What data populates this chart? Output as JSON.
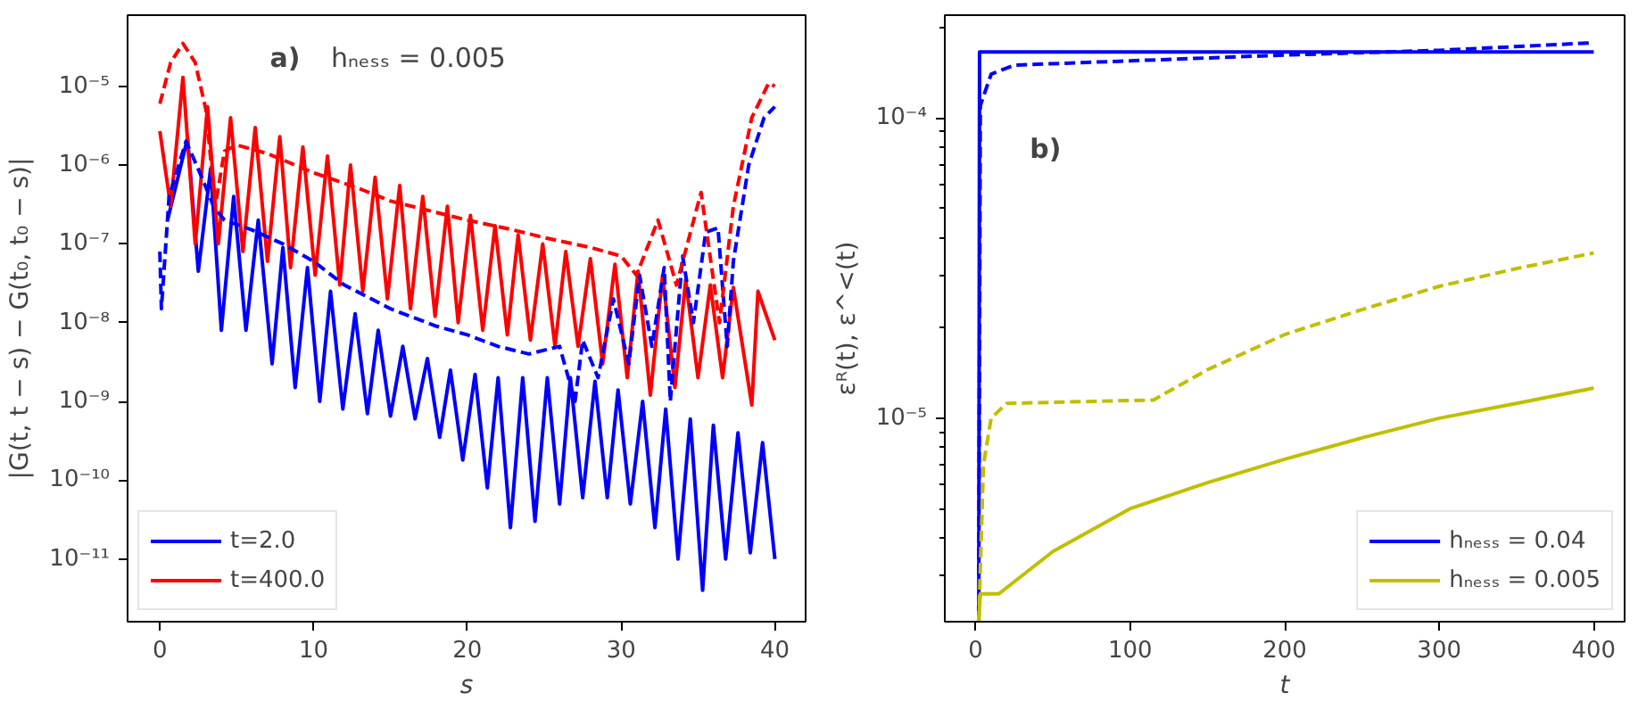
{
  "chart_data": [
    {
      "type": "line",
      "xlabel": "s",
      "ylabel": "|G(t, t − s) − G(t₀, t₀ − s)|",
      "annotations": [
        "a)",
        "hₙₑₛₛ = 0.005"
      ],
      "log": "y",
      "grid": false,
      "legend": "bottom left",
      "xlim": [
        -2.1,
        42
      ],
      "xticks": [
        0,
        10,
        20,
        30,
        40
      ],
      "ylim": [
        1.6e-12,
        8e-05
      ],
      "yticks": [
        {
          "value": 1e-11,
          "label": "10⁻¹¹"
        },
        {
          "value": 1e-10,
          "label": "10⁻¹⁰"
        },
        {
          "value": 1e-09,
          "label": "10⁻⁹"
        },
        {
          "value": 1e-08,
          "label": "10⁻⁸"
        },
        {
          "value": 1e-07,
          "label": "10⁻⁷"
        },
        {
          "value": 1e-06,
          "label": "10⁻⁶"
        },
        {
          "value": 1e-05,
          "label": "10⁻⁵"
        }
      ],
      "series": [
        {
          "name": "t=2.0",
          "color": "#0000ff",
          "line_style": "solid",
          "x": [
            0.5,
            1.8,
            2.5,
            3.3,
            4.0,
            4.8,
            5.6,
            6.4,
            7.3,
            8.0,
            8.8,
            9.6,
            10.4,
            11.1,
            11.9,
            12.7,
            13.5,
            14.2,
            15.0,
            15.8,
            16.6,
            17.4,
            18.2,
            18.9,
            19.7,
            20.5,
            21.3,
            22.0,
            22.8,
            23.6,
            24.4,
            25.2,
            26.0,
            26.7,
            27.5,
            28.3,
            29.1,
            29.8,
            30.6,
            31.4,
            32.2,
            32.9,
            33.7,
            34.5,
            35.3,
            36.0,
            36.8,
            37.6,
            38.4,
            39.2,
            40.0
          ],
          "values": [
            2e-07,
            2.2e-06,
            4.5e-08,
            9e-07,
            8e-09,
            4e-07,
            8e-09,
            2e-07,
            3e-09,
            9e-08,
            1.5e-09,
            5e-08,
            1e-09,
            2.5e-08,
            8e-10,
            1.3e-08,
            7e-10,
            8e-09,
            6.5e-10,
            5e-09,
            6e-10,
            3.5e-09,
            3.5e-10,
            2.5e-09,
            1.8e-10,
            2.2e-09,
            8e-11,
            2e-09,
            2.5e-11,
            2e-09,
            3e-11,
            2e-09,
            5e-11,
            2e-09,
            6e-11,
            1.8e-09,
            6e-11,
            1.4e-09,
            5e-11,
            1e-09,
            2.5e-11,
            8e-10,
            1e-11,
            6e-10,
            4e-12,
            5e-10,
            1e-11,
            4e-10,
            1.2e-11,
            3e-10,
            1e-11
          ]
        },
        {
          "name": "t=400.0",
          "color": "#ff0000",
          "line_style": "solid",
          "x": [
            0,
            0.7,
            1.5,
            2.3,
            3.1,
            3.8,
            4.6,
            5.4,
            6.2,
            7.0,
            7.8,
            8.5,
            9.3,
            10.1,
            10.9,
            11.7,
            12.4,
            13.2,
            14.0,
            14.8,
            15.6,
            16.3,
            17.1,
            17.9,
            18.7,
            19.4,
            20.2,
            21.0,
            21.8,
            22.6,
            23.3,
            24.1,
            24.9,
            25.7,
            26.4,
            27.2,
            28.0,
            28.8,
            29.6,
            30.4,
            31.1,
            31.9,
            32.7,
            33.5,
            34.2,
            35.0,
            35.8,
            36.6,
            37.3,
            38.5,
            38.9,
            40.0
          ],
          "values": [
            2.7e-06,
            3e-07,
            1.3e-05,
            1e-07,
            5.5e-06,
            1e-07,
            4e-06,
            8e-08,
            3e-06,
            6e-08,
            2.3e-06,
            5e-08,
            1.7e-06,
            4e-08,
            1.3e-06,
            3e-08,
            1e-06,
            2.5e-08,
            7e-07,
            2e-08,
            5.5e-07,
            1.5e-08,
            4e-07,
            1.2e-08,
            3e-07,
            1e-08,
            2.3e-07,
            8e-09,
            1.7e-07,
            7e-09,
            1.3e-07,
            6e-09,
            1e-07,
            5e-09,
            8e-08,
            5e-09,
            6.5e-08,
            3e-09,
            5.5e-08,
            2e-09,
            4.5e-08,
            1.2e-09,
            4e-08,
            1.5e-09,
            3.5e-08,
            2e-09,
            3e-08,
            2e-09,
            2.8e-08,
            9e-10,
            2.5e-08,
            6e-09
          ]
        },
        {
          "color": "#0000ff",
          "line_style": "dashed",
          "x": [
            0,
            0.1,
            0.6,
            1.7,
            2.6,
            3.5,
            4.2,
            6,
            8,
            10,
            12,
            15,
            18,
            20,
            22,
            24,
            26,
            27,
            27.5,
            28.5,
            29.5,
            30.5,
            31.2,
            32,
            32.8,
            33.2,
            34,
            34.7,
            35.5,
            36.3,
            36.9,
            37.3,
            38.3,
            39.3,
            40
          ],
          "values": [
            8e-08,
            1.5e-08,
            4e-07,
            2e-06,
            8e-07,
            3e-07,
            2e-07,
            1.5e-07,
            1e-07,
            6e-08,
            3e-08,
            1.5e-08,
            9e-09,
            7e-09,
            5e-09,
            4e-09,
            5e-09,
            1e-09,
            6e-09,
            2e-09,
            2e-08,
            3e-09,
            4e-08,
            5e-09,
            5e-08,
            1e-09,
            7e-08,
            1e-08,
            1.4e-07,
            1.6e-07,
            5e-09,
            6e-08,
            1e-06,
            4e-06,
            5.5e-06
          ]
        },
        {
          "color": "#ff0000",
          "line_style": "dashed",
          "x": [
            0,
            0.7,
            1.5,
            2.3,
            3.0,
            3.6,
            4.2,
            5,
            7,
            10,
            13,
            15,
            18,
            20,
            23,
            25,
            28,
            30,
            31,
            32.4,
            33.6,
            35.2,
            36.4,
            37.3,
            38.5,
            39.6,
            40
          ],
          "values": [
            6e-06,
            2e-05,
            3.5e-05,
            2e-05,
            5e-06,
            3e-07,
            1.5e-06,
            1.8e-06,
            1.4e-06,
            8e-07,
            5e-07,
            3.5e-07,
            2.5e-07,
            2e-07,
            1.5e-07,
            1.2e-07,
            9e-08,
            7e-08,
            4e-08,
            2e-07,
            3e-08,
            4.5e-07,
            1e-08,
            3e-07,
            4e-06,
            1.1e-05,
            1e-05
          ]
        }
      ]
    },
    {
      "type": "line",
      "xlabel": "t",
      "ylabel": "εᴿ(t), ε^<(t)",
      "annotations": [
        "b)"
      ],
      "log": "y",
      "grid": false,
      "legend": "bottom right",
      "xlim": [
        -20,
        420
      ],
      "xticks": [
        0,
        100,
        200,
        300,
        400
      ],
      "ylim": [
        2.1e-06,
        0.00022
      ],
      "yticks": [
        {
          "value": 3e-06,
          "label": null
        },
        {
          "value": 4e-06,
          "label": null
        },
        {
          "value": 5e-06,
          "label": null
        },
        {
          "value": 6e-06,
          "label": null
        },
        {
          "value": 7e-06,
          "label": null
        },
        {
          "value": 8e-06,
          "label": null
        },
        {
          "value": 9e-06,
          "label": null
        },
        {
          "value": 1e-05,
          "label": "10⁻⁵"
        },
        {
          "value": 2e-05,
          "label": null
        },
        {
          "value": 3e-05,
          "label": null
        },
        {
          "value": 4e-05,
          "label": null
        },
        {
          "value": 5e-05,
          "label": null
        },
        {
          "value": 6e-05,
          "label": null
        },
        {
          "value": 7e-05,
          "label": null
        },
        {
          "value": 8e-05,
          "label": null
        },
        {
          "value": 9e-05,
          "label": null
        },
        {
          "value": 0.0001,
          "label": "10⁻⁴"
        },
        {
          "value": 0.0002,
          "label": null
        }
      ],
      "series": [
        {
          "name": "hₙₑₛₛ = 0.04",
          "color": "#0000ff",
          "line_style": "solid",
          "x": [
            2,
            2.5,
            400
          ],
          "values": [
            2.2e-06,
            0.000166,
            0.000166
          ]
        },
        {
          "name": "hₙₑₛₛ = 0.005",
          "color": "#bfbf00",
          "line_style": "solid",
          "x": [
            2,
            3,
            15,
            50,
            100,
            150,
            200,
            250,
            300,
            350,
            400
          ],
          "values": [
            2.1e-06,
            2.6e-06,
            2.6e-06,
            3.6e-06,
            5e-06,
            6.1e-06,
            7.3e-06,
            8.6e-06,
            1e-05,
            1.12e-05,
            1.26e-05
          ]
        },
        {
          "color": "#0000ff",
          "line_style": "dashed",
          "x": [
            2,
            3,
            10,
            25,
            100,
            200,
            300,
            400
          ],
          "values": [
            3e-06,
            0.00011,
            0.00014,
            0.00015,
            0.000155,
            0.000162,
            0.000168,
            0.000178
          ]
        },
        {
          "color": "#bfbf00",
          "line_style": "dashed",
          "x": [
            2,
            5,
            10,
            20,
            115,
            150,
            200,
            250,
            300,
            350,
            400
          ],
          "values": [
            2.1e-06,
            7e-06,
            1e-05,
            1.12e-05,
            1.15e-05,
            1.45e-05,
            1.9e-05,
            2.3e-05,
            2.75e-05,
            3.15e-05,
            3.55e-05
          ]
        }
      ]
    }
  ]
}
